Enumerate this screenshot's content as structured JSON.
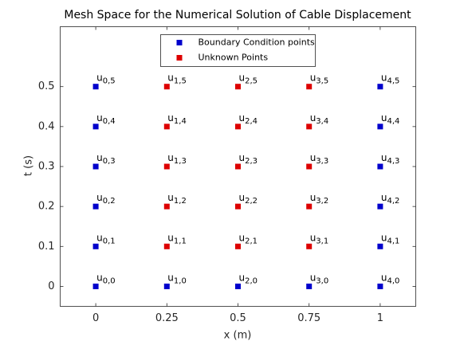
{
  "chart_data": {
    "type": "scatter",
    "title": "Mesh Space for the Numerical Solution of Cable Displacement",
    "xlabel": "x (m)",
    "ylabel": "t (s)",
    "xlim": [
      -0.125,
      1.125
    ],
    "ylim": [
      -0.05,
      0.65
    ],
    "xticks": [
      0,
      0.25,
      0.5,
      0.75,
      1
    ],
    "yticks": [
      0,
      0.1,
      0.2,
      0.3,
      0.4,
      0.5
    ],
    "grid": false,
    "legend": "upper center",
    "series": [
      {
        "name": "Boundary Condition points",
        "color": "#0000cc",
        "x": [
          0,
          0,
          0,
          0,
          0,
          0,
          1,
          1,
          1,
          1,
          1,
          1,
          0.25,
          0.5,
          0.75
        ],
        "values": [
          0,
          0.1,
          0.2,
          0.3,
          0.4,
          0.5,
          0,
          0.1,
          0.2,
          0.3,
          0.4,
          0.5,
          0,
          0,
          0
        ]
      },
      {
        "name": "Unknown Points",
        "color": "#dd0000",
        "x": [
          0.25,
          0.25,
          0.25,
          0.25,
          0.25,
          0.5,
          0.5,
          0.5,
          0.5,
          0.5,
          0.75,
          0.75,
          0.75,
          0.75,
          0.75
        ],
        "values": [
          0.1,
          0.2,
          0.3,
          0.4,
          0.5,
          0.1,
          0.2,
          0.3,
          0.4,
          0.5,
          0.1,
          0.2,
          0.3,
          0.4,
          0.5
        ]
      }
    ],
    "annotations": [
      {
        "text": "u",
        "subscript": "0,0",
        "x": 0,
        "y": 0
      },
      {
        "text": "u",
        "subscript": "0,1",
        "x": 0,
        "y": 0.1
      },
      {
        "text": "u",
        "subscript": "0,2",
        "x": 0,
        "y": 0.2
      },
      {
        "text": "u",
        "subscript": "0,3",
        "x": 0,
        "y": 0.3
      },
      {
        "text": "u",
        "subscript": "0,4",
        "x": 0,
        "y": 0.4
      },
      {
        "text": "u",
        "subscript": "0,5",
        "x": 0,
        "y": 0.5
      },
      {
        "text": "u",
        "subscript": "1,0",
        "x": 0.25,
        "y": 0
      },
      {
        "text": "u",
        "subscript": "1,1",
        "x": 0.25,
        "y": 0.1
      },
      {
        "text": "u",
        "subscript": "1,2",
        "x": 0.25,
        "y": 0.2
      },
      {
        "text": "u",
        "subscript": "1,3",
        "x": 0.25,
        "y": 0.3
      },
      {
        "text": "u",
        "subscript": "1,4",
        "x": 0.25,
        "y": 0.4
      },
      {
        "text": "u",
        "subscript": "1,5",
        "x": 0.25,
        "y": 0.5
      },
      {
        "text": "u",
        "subscript": "2,0",
        "x": 0.5,
        "y": 0
      },
      {
        "text": "u",
        "subscript": "2,1",
        "x": 0.5,
        "y": 0.1
      },
      {
        "text": "u",
        "subscript": "2,2",
        "x": 0.5,
        "y": 0.2
      },
      {
        "text": "u",
        "subscript": "2,3",
        "x": 0.5,
        "y": 0.3
      },
      {
        "text": "u",
        "subscript": "2,4",
        "x": 0.5,
        "y": 0.4
      },
      {
        "text": "u",
        "subscript": "2,5",
        "x": 0.5,
        "y": 0.5
      },
      {
        "text": "u",
        "subscript": "3,0",
        "x": 0.75,
        "y": 0
      },
      {
        "text": "u",
        "subscript": "3,1",
        "x": 0.75,
        "y": 0.1
      },
      {
        "text": "u",
        "subscript": "3,2",
        "x": 0.75,
        "y": 0.2
      },
      {
        "text": "u",
        "subscript": "3,3",
        "x": 0.75,
        "y": 0.3
      },
      {
        "text": "u",
        "subscript": "3,4",
        "x": 0.75,
        "y": 0.4
      },
      {
        "text": "u",
        "subscript": "3,5",
        "x": 0.75,
        "y": 0.5
      },
      {
        "text": "u",
        "subscript": "4,0",
        "x": 1,
        "y": 0
      },
      {
        "text": "u",
        "subscript": "4,1",
        "x": 1,
        "y": 0.1
      },
      {
        "text": "u",
        "subscript": "4,2",
        "x": 1,
        "y": 0.2
      },
      {
        "text": "u",
        "subscript": "4,3",
        "x": 1,
        "y": 0.3
      },
      {
        "text": "u",
        "subscript": "4,4",
        "x": 1,
        "y": 0.4
      },
      {
        "text": "u",
        "subscript": "4,5",
        "x": 1,
        "y": 0.5
      }
    ]
  }
}
